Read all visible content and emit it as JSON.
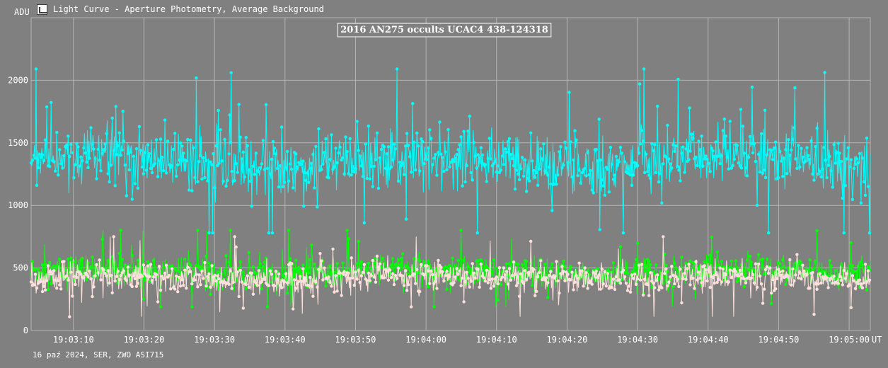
{
  "window": {
    "title": "Light Curve - Aperture Photometry, Average Background",
    "icon": "chart-icon"
  },
  "footer": {
    "text": "16 paź 2024, SER, ZWO ASI715"
  },
  "colors": {
    "background": "#808080",
    "grid": "#b4b4b4",
    "series_target": "#00ffff",
    "series_comparison": "#00ff00",
    "series_background": "#ffe0dc"
  },
  "chart_data": {
    "type": "line",
    "title": "2016 AN275 occults UCAC4 438-124318",
    "xlabel": "UT",
    "ylabel": "ADU",
    "xlim": [
      "19:03:04",
      "19:05:03"
    ],
    "ylim": [
      0,
      2500
    ],
    "x_ticks": [
      "19:03:10",
      "19:03:20",
      "19:03:30",
      "19:03:40",
      "19:03:50",
      "19:04:00",
      "19:04:10",
      "19:04:20",
      "19:04:30",
      "19:04:40",
      "19:04:50",
      "19:05:00"
    ],
    "y_ticks": [
      0,
      500,
      1000,
      1500,
      2000
    ],
    "grid": true,
    "markers": true,
    "series": [
      {
        "key": "target",
        "color": "#00ffff",
        "mean": 1350,
        "min": 780,
        "max": 2090,
        "spread": 190
      },
      {
        "key": "comparison",
        "color": "#00ff00",
        "mean": 470,
        "min": 190,
        "max": 800,
        "spread": 95
      },
      {
        "key": "background",
        "color": "#ffe0dc",
        "mean": 420,
        "min": 110,
        "max": 750,
        "spread": 90
      }
    ]
  }
}
